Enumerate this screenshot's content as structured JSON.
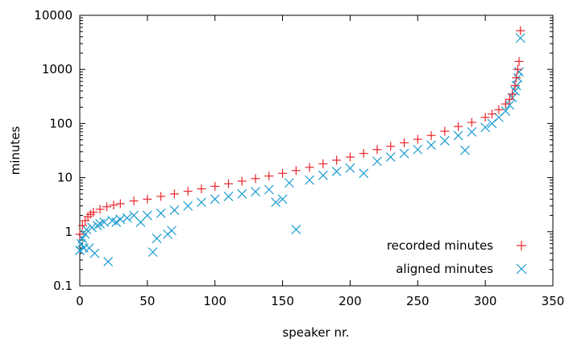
{
  "chart_data": {
    "type": "scatter",
    "xlabel": "speaker nr.",
    "ylabel": "minutes",
    "xlim": [
      0,
      350
    ],
    "ylim": [
      0.1,
      10000
    ],
    "yscale": "log",
    "x_ticks": [
      0,
      50,
      100,
      150,
      200,
      250,
      300,
      350
    ],
    "x_tick_labels": [
      "0",
      "50",
      "100",
      "150",
      "200",
      "250",
      "300",
      "350"
    ],
    "y_ticks": [
      0.1,
      1,
      10,
      100,
      1000,
      10000
    ],
    "y_tick_labels": [
      "0.1",
      "1",
      "10",
      "100",
      "1000",
      "10000"
    ],
    "legend_position": "bottom-right",
    "grid": false,
    "series": [
      {
        "name": "recorded minutes",
        "marker": "plus",
        "color": "#e8262d",
        "x": [
          0,
          2,
          4,
          6,
          8,
          10,
          15,
          20,
          25,
          30,
          40,
          50,
          60,
          70,
          80,
          90,
          100,
          110,
          120,
          130,
          140,
          150,
          160,
          170,
          180,
          190,
          200,
          210,
          220,
          230,
          240,
          250,
          260,
          270,
          280,
          290,
          300,
          305,
          310,
          315,
          318,
          320,
          322,
          323,
          324,
          325,
          326
        ],
        "y": [
          0.9,
          1.3,
          1.6,
          1.9,
          2.1,
          2.3,
          2.6,
          2.9,
          3.1,
          3.3,
          3.7,
          4.0,
          4.5,
          5.0,
          5.6,
          6.2,
          6.9,
          7.7,
          8.6,
          9.6,
          10.7,
          12,
          13.5,
          15.5,
          18,
          21,
          24,
          28,
          33,
          38,
          44,
          51,
          60,
          72,
          88,
          105,
          130,
          150,
          180,
          230,
          280,
          350,
          500,
          700,
          1000,
          1400,
          5200
        ]
      },
      {
        "name": "aligned minutes",
        "marker": "cross",
        "color": "#1a9cd0",
        "x": [
          0,
          1,
          2,
          3,
          4,
          5,
          7,
          9,
          11,
          13,
          15,
          18,
          21,
          24,
          27,
          30,
          35,
          40,
          45,
          50,
          54,
          57,
          60,
          65,
          68,
          70,
          80,
          90,
          100,
          110,
          120,
          130,
          140,
          145,
          150,
          155,
          160,
          170,
          180,
          190,
          200,
          210,
          220,
          230,
          240,
          250,
          260,
          270,
          280,
          285,
          290,
          300,
          305,
          310,
          315,
          318,
          320,
          322,
          323,
          324,
          325,
          326
        ],
        "y": [
          0.45,
          0.6,
          0.75,
          0.5,
          0.9,
          1.1,
          0.5,
          1.2,
          0.4,
          1.3,
          1.4,
          1.5,
          0.28,
          1.6,
          1.5,
          1.7,
          1.8,
          2.0,
          1.5,
          2.0,
          0.42,
          0.75,
          2.2,
          0.9,
          1.05,
          2.5,
          3.0,
          3.5,
          4.0,
          4.5,
          5.0,
          5.5,
          6.0,
          3.5,
          4.0,
          8.0,
          1.1,
          9.0,
          11,
          13,
          15,
          12,
          20,
          24,
          28,
          33,
          40,
          48,
          60,
          32,
          70,
          85,
          100,
          130,
          170,
          220,
          300,
          400,
          500,
          700,
          900,
          3800
        ]
      }
    ]
  }
}
